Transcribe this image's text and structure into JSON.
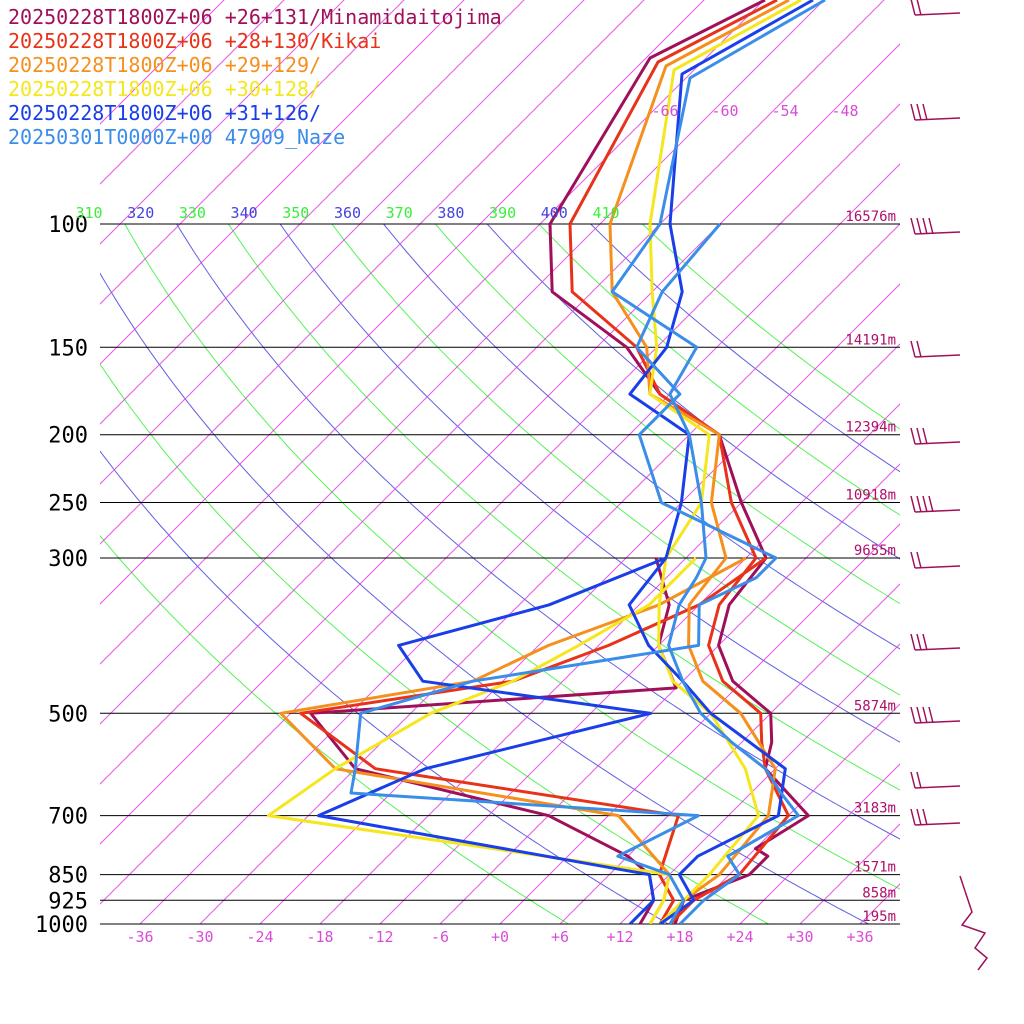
{
  "chart_data": {
    "type": "line",
    "title": "",
    "legend_position": "top-left",
    "x_tick_labels": [
      "-36",
      "-30",
      "-24",
      "-18",
      "-12",
      "-6",
      "+0",
      "+6",
      "+12",
      "+18",
      "+24",
      "+30",
      "+36"
    ],
    "x_ticks": [
      -36,
      -30,
      -24,
      -18,
      -12,
      -6,
      0,
      6,
      12,
      18,
      24,
      30,
      36
    ],
    "xlim": [
      -40,
      40
    ],
    "pressure_levels": [
      {
        "p": 100,
        "label": "100",
        "height": "16576m"
      },
      {
        "p": 150,
        "label": "150",
        "height": "14191m"
      },
      {
        "p": 200,
        "label": "200",
        "height": "12394m"
      },
      {
        "p": 250,
        "label": "250",
        "height": "10918m"
      },
      {
        "p": 300,
        "label": "300",
        "height": "9655m"
      },
      {
        "p": 500,
        "label": "500",
        "height": "5874m"
      },
      {
        "p": 700,
        "label": "700",
        "height": "3183m"
      },
      {
        "p": 850,
        "label": "850",
        "height": "1571m"
      },
      {
        "p": 925,
        "label": "925",
        "height": "858m"
      },
      {
        "p": 1000,
        "label": "1000",
        "height": "195m"
      }
    ],
    "isotherm_labels": [
      "-66",
      "-60",
      "-54",
      "-48"
    ],
    "theta_labels": [
      "310",
      "320",
      "330",
      "340",
      "350",
      "360",
      "370",
      "380",
      "390",
      "400",
      "410"
    ],
    "series": [
      {
        "name": "20250228T1800Z+06 +26+131/Minamidaitojima",
        "color": "#a0105a",
        "temperature": [
          [
            1000,
            17.5
          ],
          [
            925,
            16
          ],
          [
            850,
            20
          ],
          [
            800,
            20
          ],
          [
            780,
            18
          ],
          [
            700,
            20
          ],
          [
            600,
            11
          ],
          [
            550,
            9
          ],
          [
            500,
            6
          ],
          [
            450,
            -1
          ],
          [
            400,
            -6
          ],
          [
            350,
            -9
          ],
          [
            300,
            -10
          ],
          [
            250,
            -18
          ],
          [
            200,
            -27
          ],
          [
            175,
            -37
          ],
          [
            150,
            -45
          ],
          [
            125,
            -58
          ],
          [
            100,
            -65
          ]
        ],
        "dewpoint": [
          [
            1000,
            14
          ],
          [
            925,
            13
          ],
          [
            850,
            10
          ],
          [
            800,
            6
          ],
          [
            700,
            -6
          ],
          [
            600,
            -30
          ],
          [
            500,
            -40
          ],
          [
            460,
            -6
          ],
          [
            400,
            -12
          ],
          [
            350,
            -15
          ],
          [
            300,
            -21
          ]
        ]
      },
      {
        "name": "20250228T1800Z+06 +28+130/Kikai",
        "color": "#e8321a",
        "temperature": [
          [
            1000,
            17
          ],
          [
            925,
            17
          ],
          [
            850,
            19
          ],
          [
            700,
            18
          ],
          [
            600,
            11
          ],
          [
            550,
            8
          ],
          [
            500,
            5
          ],
          [
            450,
            -2
          ],
          [
            400,
            -7
          ],
          [
            350,
            -10
          ],
          [
            300,
            -11
          ],
          [
            250,
            -19
          ],
          [
            200,
            -27
          ],
          [
            175,
            -37
          ],
          [
            150,
            -44
          ],
          [
            125,
            -56
          ],
          [
            100,
            -63
          ]
        ],
        "dewpoint": [
          [
            1000,
            16
          ],
          [
            925,
            15
          ],
          [
            850,
            11
          ],
          [
            700,
            7
          ],
          [
            600,
            -28
          ],
          [
            500,
            -41
          ],
          [
            450,
            -23
          ],
          [
            400,
            -17
          ],
          [
            350,
            -12
          ],
          [
            300,
            -10
          ]
        ]
      },
      {
        "name": "20250228T1800Z+06 +29+129/",
        "color": "#f5901e",
        "temperature": [
          [
            1000,
            16
          ],
          [
            925,
            16
          ],
          [
            850,
            17
          ],
          [
            700,
            16
          ],
          [
            600,
            12
          ],
          [
            500,
            3
          ],
          [
            450,
            -4
          ],
          [
            400,
            -9
          ],
          [
            350,
            -13
          ],
          [
            300,
            -14
          ],
          [
            250,
            -21
          ],
          [
            200,
            -27
          ],
          [
            175,
            -38
          ],
          [
            150,
            -43
          ],
          [
            125,
            -52
          ],
          [
            100,
            -59
          ]
        ],
        "dewpoint": [
          [
            1000,
            15
          ],
          [
            925,
            14
          ],
          [
            850,
            12
          ],
          [
            700,
            1
          ],
          [
            600,
            -32
          ],
          [
            500,
            -43
          ],
          [
            450,
            -27
          ],
          [
            400,
            -23
          ],
          [
            350,
            -16
          ],
          [
            300,
            -12
          ]
        ]
      },
      {
        "name": "20250228T1800Z+06 +30+128/",
        "color": "#f5e61e",
        "temperature": [
          [
            1000,
            16
          ],
          [
            925,
            16
          ],
          [
            850,
            16
          ],
          [
            700,
            15
          ],
          [
            600,
            9
          ],
          [
            500,
            0
          ],
          [
            450,
            -7
          ],
          [
            400,
            -12
          ],
          [
            350,
            -16
          ],
          [
            300,
            -20
          ],
          [
            250,
            -22
          ],
          [
            200,
            -28
          ],
          [
            175,
            -38
          ],
          [
            150,
            -42
          ],
          [
            125,
            -48
          ],
          [
            100,
            -55
          ]
        ],
        "dewpoint": [
          [
            1000,
            15
          ],
          [
            925,
            14
          ],
          [
            850,
            12
          ],
          [
            700,
            -34
          ],
          [
            600,
            -32
          ],
          [
            500,
            -28
          ],
          [
            450,
            -23
          ],
          [
            400,
            -20
          ],
          [
            350,
            -17
          ],
          [
            300,
            -17
          ]
        ]
      },
      {
        "name": "20250228T1800Z+06 +31+126/",
        "color": "#1a3fe8",
        "temperature": [
          [
            1000,
            16
          ],
          [
            925,
            17
          ],
          [
            850,
            13
          ],
          [
            800,
            13
          ],
          [
            700,
            17
          ],
          [
            600,
            13
          ],
          [
            500,
            0
          ],
          [
            450,
            -6
          ],
          [
            400,
            -13
          ],
          [
            350,
            -19
          ],
          [
            300,
            -20
          ],
          [
            250,
            -24
          ],
          [
            200,
            -30
          ],
          [
            175,
            -40
          ],
          [
            150,
            -41
          ],
          [
            125,
            -45
          ],
          [
            100,
            -53
          ]
        ],
        "dewpoint": [
          [
            1000,
            13
          ],
          [
            925,
            13
          ],
          [
            850,
            10
          ],
          [
            700,
            -29
          ],
          [
            600,
            -23
          ],
          [
            500,
            -6
          ],
          [
            450,
            -32
          ],
          [
            400,
            -38
          ],
          [
            350,
            -27
          ],
          [
            300,
            -20
          ]
        ]
      },
      {
        "name": "20250301T0000Z+00 47909_Naze",
        "color": "#3a8de8",
        "temperature": [
          [
            1000,
            18
          ],
          [
            925,
            18
          ],
          [
            850,
            19
          ],
          [
            800,
            16
          ],
          [
            700,
            19
          ],
          [
            650,
            15
          ],
          [
            600,
            11
          ],
          [
            550,
            5
          ],
          [
            500,
            -1
          ],
          [
            450,
            -6
          ],
          [
            400,
            -11
          ],
          [
            350,
            -14
          ],
          [
            320,
            -15
          ],
          [
            300,
            -16
          ],
          [
            250,
            -22
          ],
          [
            200,
            -30
          ],
          [
            175,
            -36
          ],
          [
            150,
            -38
          ],
          [
            125,
            -52
          ],
          [
            100,
            -54
          ]
        ],
        "dewpoint": [
          [
            1000,
            17
          ],
          [
            925,
            16
          ],
          [
            850,
            12
          ],
          [
            800,
            5
          ],
          [
            700,
            9
          ],
          [
            650,
            -28
          ],
          [
            600,
            -30
          ],
          [
            500,
            -35
          ],
          [
            450,
            -27
          ],
          [
            400,
            -8
          ],
          [
            350,
            -12
          ],
          [
            320,
            -9
          ],
          [
            300,
            -9
          ],
          [
            250,
            -26
          ],
          [
            200,
            -35
          ],
          [
            175,
            -35
          ],
          [
            150,
            -44
          ],
          [
            125,
            -47
          ],
          [
            100,
            -48
          ]
        ]
      }
    ]
  }
}
